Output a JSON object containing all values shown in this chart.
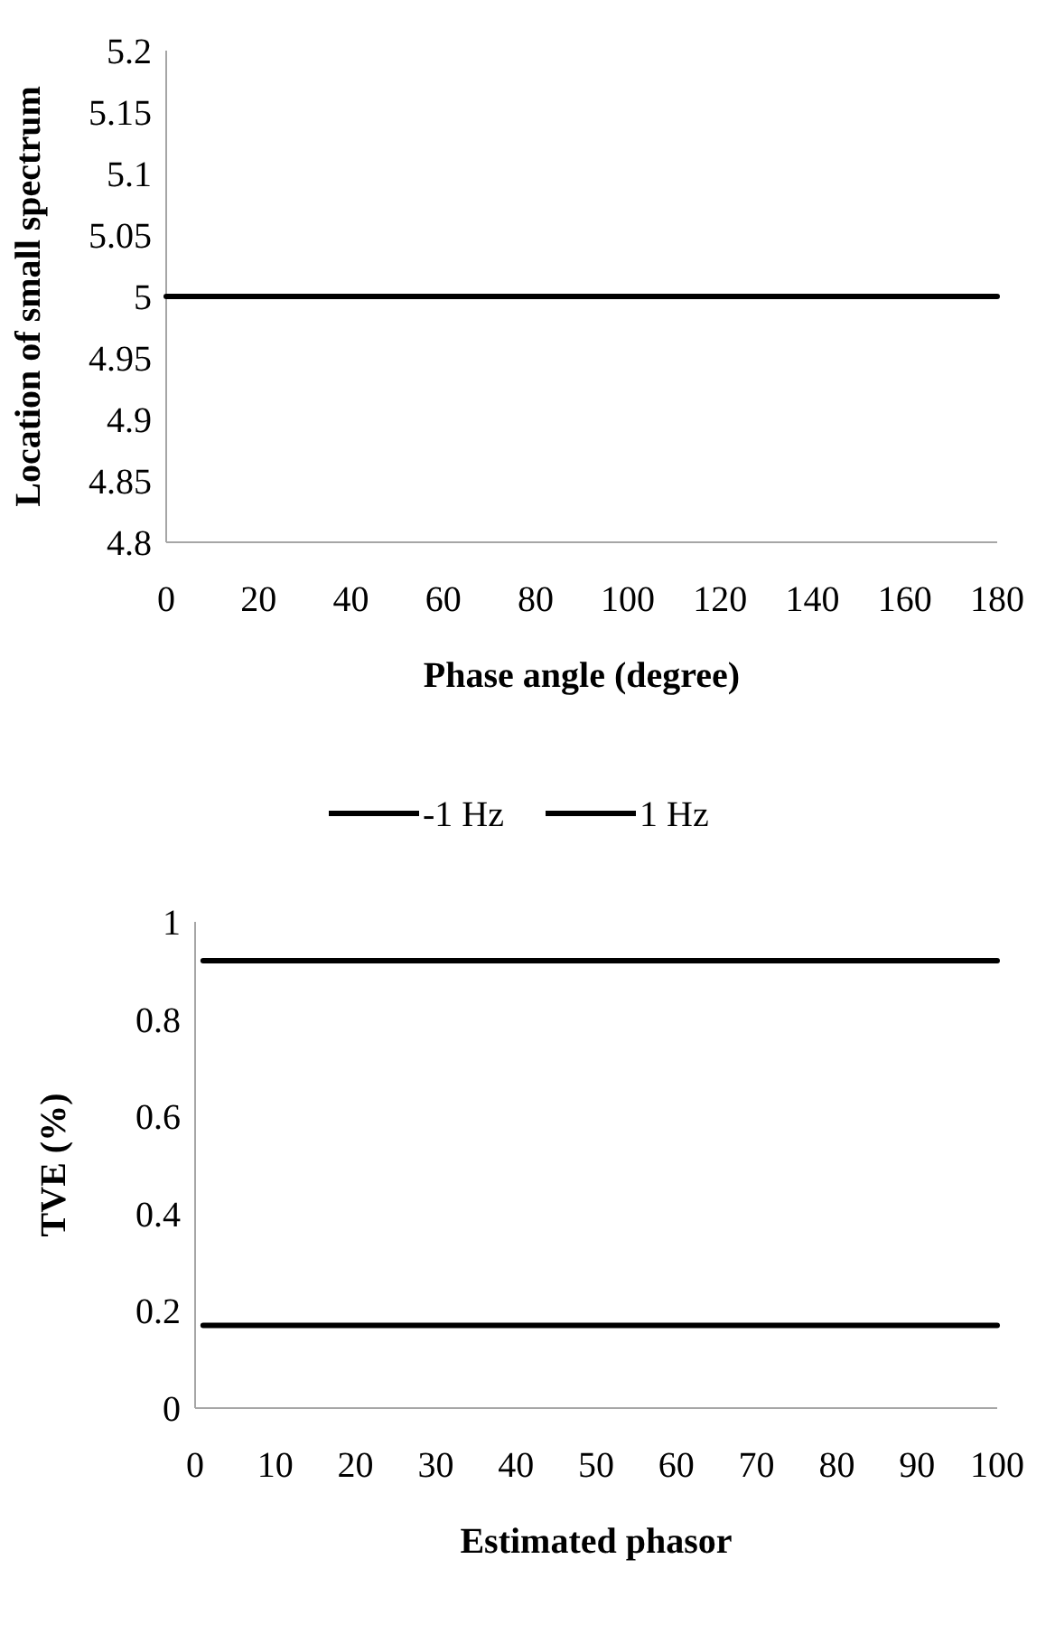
{
  "chart_data": [
    {
      "type": "line",
      "xlabel": "Phase angle (degree)",
      "ylabel": "Location of small spectrum",
      "x": [
        0,
        180
      ],
      "series": [
        {
          "color": "#000000",
          "values": [
            5,
            5
          ]
        }
      ],
      "xlim": [
        0,
        180
      ],
      "xticks": [
        0,
        20,
        40,
        60,
        80,
        100,
        120,
        140,
        160,
        180
      ],
      "ylim": [
        4.8,
        5.2
      ],
      "yticks": [
        4.8,
        4.85,
        4.9,
        4.95,
        5,
        5.05,
        5.1,
        5.15,
        5.2
      ],
      "legend": false,
      "grid": false
    },
    {
      "type": "line",
      "xlabel": "Estimated phasor",
      "ylabel": "TVE (%)",
      "x": [
        1,
        100
      ],
      "series": [
        {
          "name": "-1 Hz",
          "color": "#000000",
          "values": [
            0.92,
            0.92
          ]
        },
        {
          "name": "1 Hz",
          "color": "#000000",
          "values": [
            0.17,
            0.17
          ]
        }
      ],
      "xlim": [
        0,
        100
      ],
      "xticks": [
        0,
        10,
        20,
        30,
        40,
        50,
        60,
        70,
        80,
        90,
        100
      ],
      "ylim": [
        0,
        1
      ],
      "yticks": [
        0,
        0.2,
        0.4,
        0.6,
        0.8,
        1
      ],
      "legend": "top",
      "grid": false
    }
  ]
}
